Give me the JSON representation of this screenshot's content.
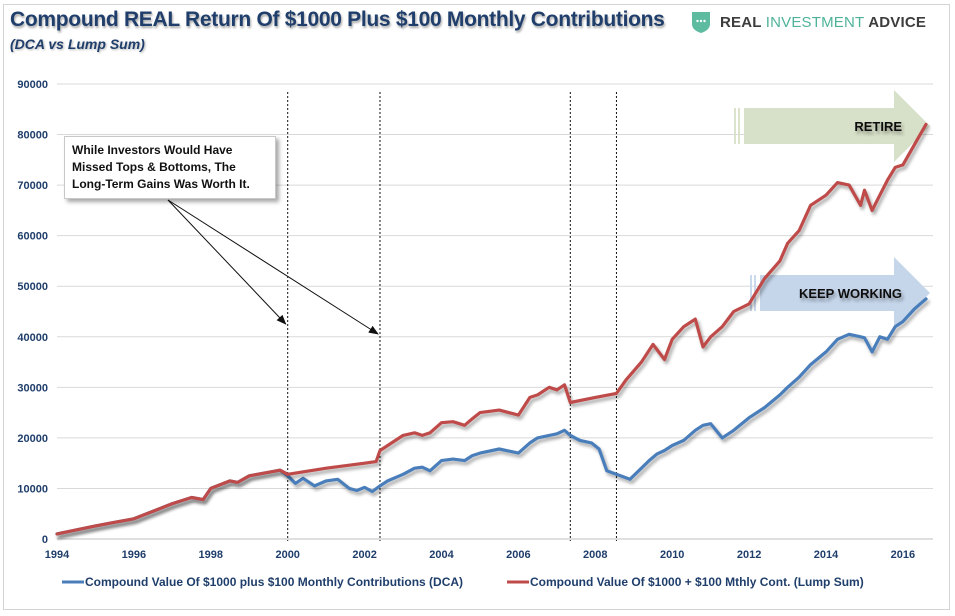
{
  "header": {
    "title": "Compound REAL Return Of $1000 Plus $100 Monthly Contributions",
    "subtitle": "(DCA vs Lump Sum)",
    "brand_dark_1": "REAL ",
    "brand_green": "INVESTMENT",
    "brand_dark_2": " ADVICE",
    "brand_icon": "shield-dots-icon"
  },
  "annotations": {
    "callout_lines": [
      "While Investors Would Have",
      "Missed Tops & Bottoms, The",
      "Long-Term Gains Was Worth It."
    ],
    "retire_label": "RETIRE",
    "keep_working_label": "KEEP WORKING",
    "vertical_markers": [
      2000.0,
      2002.4,
      2007.35,
      2008.55
    ],
    "arrow_targets": [
      2000.0,
      2002.4
    ]
  },
  "colors": {
    "dca": "#4a7ebb",
    "lump_sum": "#be4b48",
    "axis_text": "#1f3e6b",
    "grid": "#d9d9d9",
    "retire_arrow": "#d7e0c8",
    "keep_working_arrow": "#c5d5ea",
    "brand_green": "#4fb39a"
  },
  "chart_data": {
    "type": "line",
    "title": "Compound REAL Return Of $1000 Plus $100 Monthly Contributions",
    "subtitle": "(DCA vs Lump Sum)",
    "xlabel": "",
    "ylabel": "",
    "xlim": [
      1994,
      2016.6
    ],
    "ylim": [
      0,
      90000
    ],
    "grid": true,
    "legend_position": "bottom",
    "x_ticks": [
      "1994",
      "1996",
      "1998",
      "2000",
      "2002",
      "2004",
      "2006",
      "2008",
      "2010",
      "2012",
      "2014",
      "2016"
    ],
    "y_ticks": [
      "0",
      "10000",
      "20000",
      "30000",
      "40000",
      "50000",
      "60000",
      "70000",
      "80000",
      "90000"
    ],
    "series": [
      {
        "name": "Compound Value Of $1000 plus $100 Monthly Contributions (DCA)",
        "x": [
          1994.0,
          1994.5,
          1995.0,
          1995.5,
          1996.0,
          1996.5,
          1997.0,
          1997.5,
          1997.8,
          1998.0,
          1998.5,
          1998.7,
          1999.0,
          1999.5,
          1999.8,
          2000.0,
          2000.2,
          2000.4,
          2000.7,
          2001.0,
          2001.3,
          2001.6,
          2001.8,
          2002.0,
          2002.2,
          2002.4,
          2002.6,
          2003.0,
          2003.3,
          2003.5,
          2003.7,
          2004.0,
          2004.3,
          2004.6,
          2004.8,
          2005.0,
          2005.5,
          2006.0,
          2006.3,
          2006.5,
          2006.8,
          2007.0,
          2007.2,
          2007.35,
          2007.6,
          2007.9,
          2008.1,
          2008.3,
          2008.55,
          2008.9,
          2009.2,
          2009.4,
          2009.6,
          2009.8,
          2010.0,
          2010.3,
          2010.6,
          2010.8,
          2011.0,
          2011.3,
          2011.6,
          2012.0,
          2012.4,
          2012.8,
          2013.0,
          2013.3,
          2013.6,
          2014.0,
          2014.3,
          2014.6,
          2014.9,
          2015.0,
          2015.2,
          2015.4,
          2015.6,
          2015.8,
          2016.0,
          2016.3,
          2016.6
        ],
        "values": [
          1000,
          1800,
          2600,
          3300,
          4000,
          5500,
          7000,
          8200,
          7800,
          10000,
          11500,
          11200,
          12500,
          13200,
          13600,
          12500,
          11000,
          12000,
          10500,
          11500,
          11800,
          10000,
          9600,
          10200,
          9400,
          10500,
          11500,
          12800,
          14000,
          14200,
          13500,
          15500,
          15800,
          15500,
          16500,
          17000,
          17800,
          17000,
          19000,
          20000,
          20500,
          20800,
          21500,
          20500,
          19500,
          19000,
          17800,
          13500,
          12800,
          11800,
          14000,
          15500,
          16800,
          17500,
          18500,
          19500,
          21500,
          22500,
          22800,
          20000,
          21500,
          24000,
          26000,
          28500,
          30000,
          32000,
          34500,
          37000,
          39500,
          40500,
          40000,
          39800,
          37000,
          40000,
          39500,
          42000,
          43000,
          45500,
          47500
        ]
      },
      {
        "name": "Compound Value Of $1000 + $100 Mthly Cont. (Lump Sum)",
        "x": [
          1994.0,
          1994.5,
          1995.0,
          1995.5,
          1996.0,
          1996.5,
          1997.0,
          1997.5,
          1997.8,
          1998.0,
          1998.5,
          1998.7,
          1999.0,
          1999.5,
          1999.8,
          2000.0,
          2001.0,
          2002.0,
          2002.3,
          2002.4,
          2002.6,
          2003.0,
          2003.3,
          2003.5,
          2003.7,
          2004.0,
          2004.3,
          2004.6,
          2004.8,
          2005.0,
          2005.5,
          2006.0,
          2006.3,
          2006.5,
          2006.8,
          2007.0,
          2007.2,
          2007.35,
          2008.0,
          2008.55,
          2008.8,
          2009.2,
          2009.5,
          2009.8,
          2010.0,
          2010.3,
          2010.6,
          2010.8,
          2011.0,
          2011.3,
          2011.6,
          2012.0,
          2012.4,
          2012.8,
          2013.0,
          2013.3,
          2013.6,
          2014.0,
          2014.3,
          2014.6,
          2014.9,
          2015.0,
          2015.2,
          2015.4,
          2015.6,
          2015.8,
          2016.0,
          2016.3,
          2016.6
        ],
        "values": [
          1000,
          1800,
          2600,
          3300,
          4000,
          5500,
          7000,
          8200,
          7800,
          10000,
          11500,
          11200,
          12500,
          13200,
          13600,
          12800,
          14000,
          15000,
          15300,
          17500,
          18500,
          20500,
          21000,
          20500,
          21000,
          23000,
          23200,
          22500,
          23800,
          25000,
          25500,
          24500,
          28000,
          28500,
          30000,
          29500,
          30500,
          27000,
          28000,
          28800,
          31500,
          35000,
          38500,
          35500,
          39500,
          42000,
          43500,
          38000,
          40000,
          42000,
          45000,
          46500,
          51500,
          55000,
          58500,
          61000,
          66000,
          68000,
          70500,
          70000,
          66000,
          69000,
          65000,
          68000,
          71000,
          73500,
          74000,
          78000,
          82000
        ]
      }
    ]
  }
}
